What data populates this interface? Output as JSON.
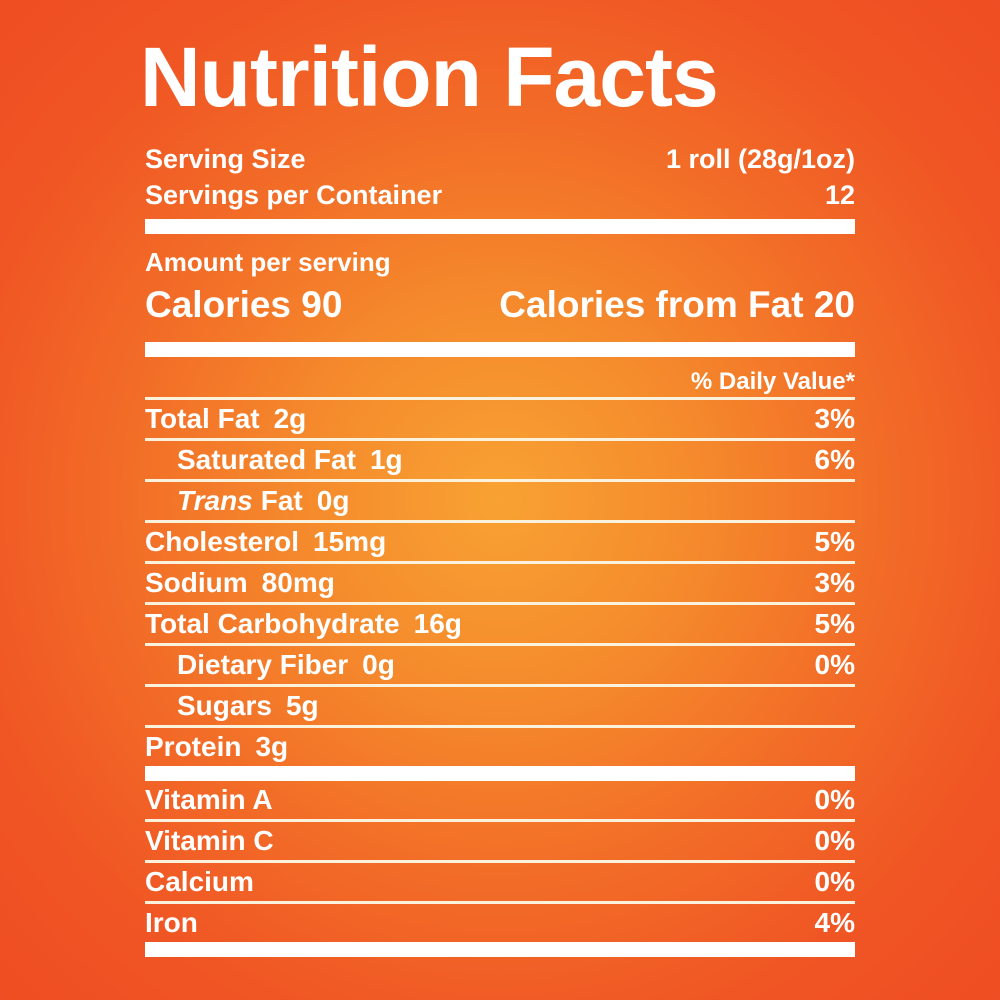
{
  "title": "Nutrition Facts",
  "serving": {
    "size_label": "Serving Size",
    "size_value": "1 roll (28g/1oz)",
    "count_label": "Servings per Container",
    "count_value": "12"
  },
  "calories": {
    "heading": "Amount per serving",
    "left": "Calories 90",
    "right": "Calories from Fat 20"
  },
  "daily_value_header": "% Daily Value*",
  "nutrients": [
    {
      "name": "Total Fat",
      "amount": "2g",
      "dv": "3%",
      "indent": false
    },
    {
      "name": "Saturated Fat",
      "amount": "1g",
      "dv": "6%",
      "indent": true
    },
    {
      "name_italic": "Trans",
      "name": "Fat",
      "amount": "0g",
      "dv": "",
      "indent": true
    },
    {
      "name": "Cholesterol",
      "amount": "15mg",
      "dv": "5%",
      "indent": false
    },
    {
      "name": "Sodium",
      "amount": "80mg",
      "dv": "3%",
      "indent": false
    },
    {
      "name": "Total Carbohydrate",
      "amount": "16g",
      "dv": "5%",
      "indent": false
    },
    {
      "name": "Dietary Fiber",
      "amount": "0g",
      "dv": "0%",
      "indent": true
    },
    {
      "name": "Sugars",
      "amount": "5g",
      "dv": "",
      "indent": true
    },
    {
      "name": "Protein",
      "amount": "3g",
      "dv": "",
      "indent": false
    }
  ],
  "micronutrients": [
    {
      "name": "Vitamin A",
      "dv": "0%"
    },
    {
      "name": "Vitamin C",
      "dv": "0%"
    },
    {
      "name": "Calcium",
      "dv": "0%"
    },
    {
      "name": "Iron",
      "dv": "4%"
    }
  ],
  "colors": {
    "background_center": "#F8A233",
    "background_edge": "#EF4D23",
    "text": "#FFFFFF",
    "thick_bar": "#FFFFFF",
    "thin_rule": "#FAF2DC"
  }
}
